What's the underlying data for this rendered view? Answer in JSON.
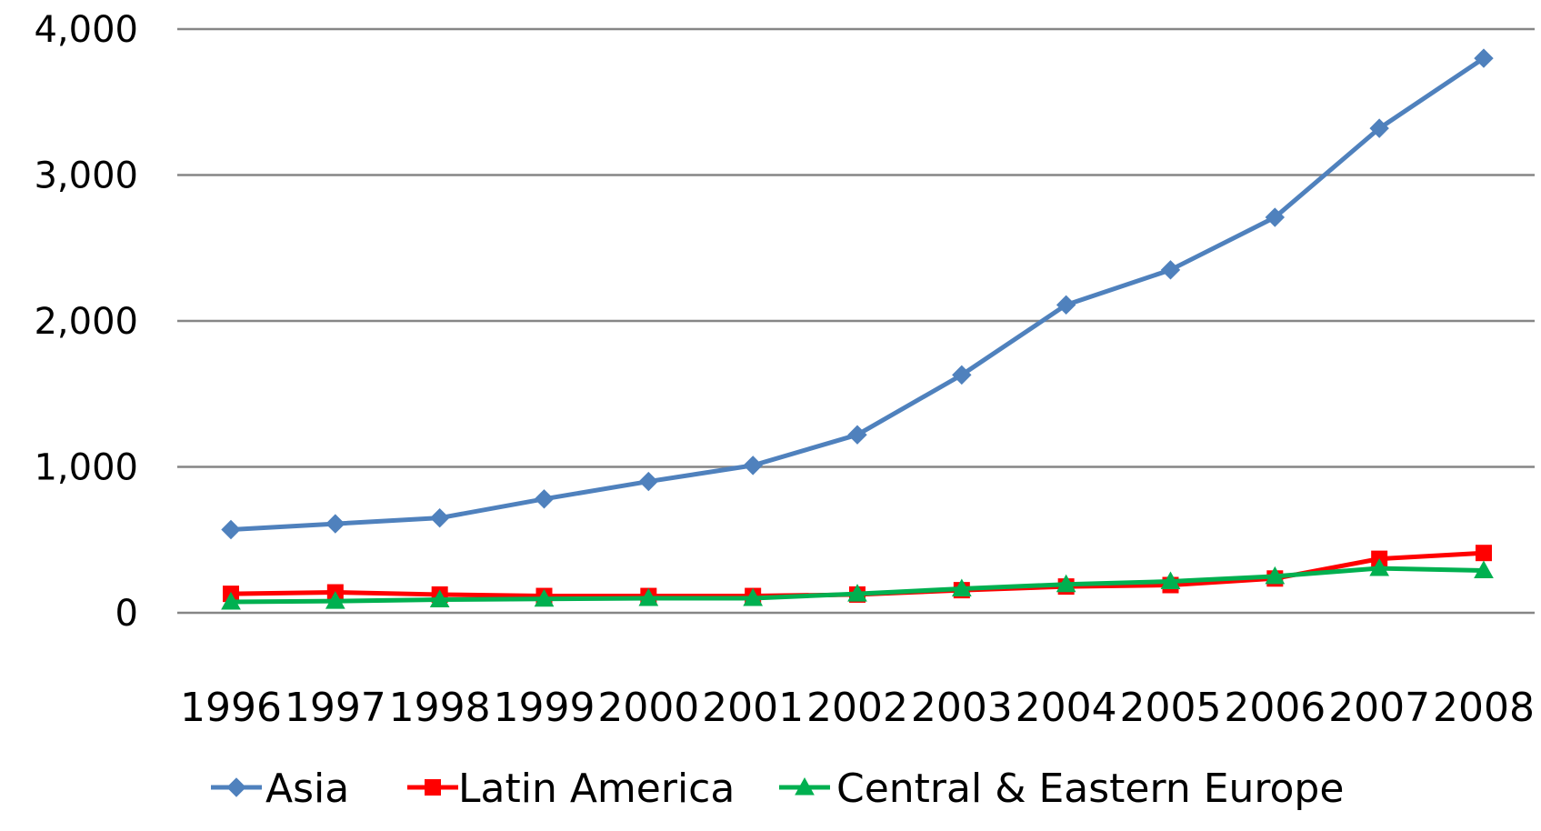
{
  "chart_data": {
    "type": "line",
    "title": "",
    "xlabel": "",
    "ylabel": "",
    "categories": [
      "1996",
      "1997",
      "1998",
      "1999",
      "2000",
      "2001",
      "2002",
      "2003",
      "2004",
      "2005",
      "2006",
      "2007",
      "2008"
    ],
    "ylim": [
      0,
      4000
    ],
    "yticks": [
      0,
      1000,
      2000,
      3000,
      4000
    ],
    "ytick_labels": [
      "0",
      "1,000",
      "2,000",
      "3,000",
      "4,000"
    ],
    "grid": "horizontal",
    "legend_position": "bottom",
    "series": [
      {
        "name": "Asia",
        "color": "#4f81bd",
        "marker": "diamond",
        "values": [
          570,
          610,
          650,
          780,
          900,
          1010,
          1220,
          1630,
          2110,
          2350,
          2710,
          3320,
          3800
        ]
      },
      {
        "name": "Latin America",
        "color": "#ff0000",
        "marker": "square",
        "values": [
          130,
          140,
          125,
          115,
          115,
          115,
          125,
          155,
          180,
          190,
          235,
          370,
          410
        ]
      },
      {
        "name": "Central & Eastern Europe",
        "color": "#00b050",
        "marker": "triangle",
        "values": [
          75,
          80,
          90,
          95,
          100,
          100,
          130,
          165,
          195,
          215,
          250,
          305,
          290
        ]
      }
    ]
  }
}
